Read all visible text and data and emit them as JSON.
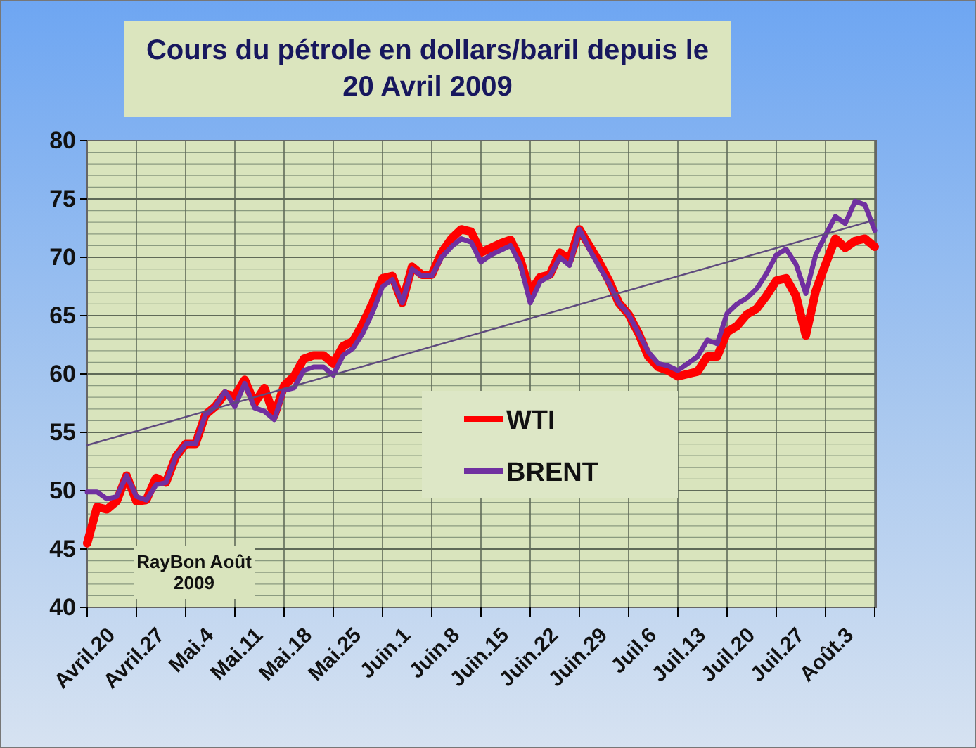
{
  "chart_data": {
    "type": "line",
    "title": "Cours du pétrole en dollars/baril depuis le 20 Avril 2009",
    "categories": [
      "Avril.20",
      null,
      null,
      null,
      null,
      "Avril.27",
      null,
      null,
      null,
      null,
      "Mai.4",
      null,
      null,
      null,
      null,
      "Mai.11",
      null,
      null,
      null,
      null,
      "Mai.18",
      null,
      null,
      null,
      null,
      "Mai.25",
      null,
      null,
      null,
      null,
      "Juin.1",
      null,
      null,
      null,
      null,
      "Juin.8",
      null,
      null,
      null,
      null,
      "Juin.15",
      null,
      null,
      null,
      null,
      "Juin.22",
      null,
      null,
      null,
      null,
      "Juin.29",
      null,
      null,
      null,
      null,
      "Juil.6",
      null,
      null,
      null,
      null,
      "Juil.13",
      null,
      null,
      null,
      null,
      "Juil.20",
      null,
      null,
      null,
      null,
      "Juil.27",
      null,
      null,
      null,
      null,
      "Août.3",
      null,
      null,
      null,
      null,
      null
    ],
    "series": [
      {
        "name": "WTI",
        "color": "#ff0000",
        "values": [
          45.5,
          48.6,
          48.4,
          49.1,
          51.3,
          49.1,
          49.2,
          51.1,
          50.7,
          52.9,
          54.0,
          54.0,
          56.5,
          57.2,
          58.3,
          58.1,
          59.5,
          57.5,
          58.8,
          56.4,
          59.0,
          59.8,
          61.3,
          61.6,
          61.6,
          60.9,
          62.4,
          62.8,
          64.3,
          66.1,
          68.2,
          68.4,
          66.1,
          69.2,
          68.5,
          68.5,
          70.4,
          71.6,
          72.4,
          72.2,
          70.4,
          70.8,
          71.2,
          71.5,
          69.8,
          67.0,
          68.3,
          68.5,
          70.4,
          69.8,
          72.4,
          71.0,
          69.6,
          68.0,
          66.1,
          65.1,
          63.5,
          61.5,
          60.6,
          60.3,
          59.8,
          60.0,
          60.2,
          61.5,
          61.5,
          63.6,
          64.1,
          65.1,
          65.6,
          66.7,
          68.0,
          68.2,
          66.7,
          63.3,
          67.1,
          69.4,
          71.6,
          70.8,
          71.4,
          71.6,
          70.9
        ]
      },
      {
        "name": "BRENT",
        "color": "#7030a0",
        "values": [
          49.9,
          49.9,
          49.3,
          49.5,
          51.3,
          49.5,
          49.2,
          50.5,
          50.7,
          52.9,
          54.0,
          54.0,
          56.5,
          57.2,
          58.5,
          57.2,
          59.2,
          57.1,
          56.8,
          56.1,
          58.6,
          58.8,
          60.3,
          60.6,
          60.6,
          59.9,
          61.6,
          62.2,
          63.5,
          65.3,
          67.5,
          68.1,
          66.1,
          69.0,
          68.4,
          68.4,
          70.0,
          70.9,
          71.6,
          71.3,
          69.6,
          70.2,
          70.6,
          71.0,
          69.4,
          66.1,
          67.9,
          68.4,
          70.0,
          69.3,
          72.4,
          70.7,
          69.2,
          67.8,
          66.1,
          65.1,
          63.5,
          61.9,
          60.9,
          60.7,
          60.3,
          60.9,
          61.5,
          62.9,
          62.6,
          65.2,
          66.0,
          66.5,
          67.3,
          68.6,
          70.2,
          70.7,
          69.4,
          66.9,
          70.2,
          71.9,
          73.5,
          72.9,
          74.8,
          74.5,
          72.3
        ]
      },
      {
        "type": "line",
        "color": "#5e4a7e",
        "values": [
          53.9,
          null,
          null,
          null,
          null,
          null,
          null,
          null,
          null,
          null,
          null,
          null,
          null,
          null,
          null,
          null,
          null,
          null,
          null,
          null,
          null,
          null,
          null,
          null,
          null,
          null,
          null,
          null,
          null,
          null,
          null,
          null,
          null,
          null,
          null,
          null,
          null,
          null,
          null,
          null,
          null,
          null,
          null,
          null,
          null,
          null,
          null,
          null,
          null,
          null,
          null,
          null,
          null,
          null,
          null,
          null,
          null,
          null,
          null,
          null,
          null,
          null,
          null,
          null,
          null,
          null,
          null,
          null,
          null,
          null,
          null,
          null,
          null,
          null,
          null,
          null,
          null,
          null,
          null,
          null,
          73.2
        ]
      }
    ],
    "ylim": [
      40,
      80
    ],
    "yticks": [
      40,
      {
        "value": 41,
        "label": null
      },
      {
        "value": 42,
        "label": null
      },
      {
        "value": 43,
        "label": null
      },
      {
        "value": 44,
        "label": null
      },
      45,
      {
        "value": 46,
        "label": null
      },
      {
        "value": 47,
        "label": null
      },
      {
        "value": 48,
        "label": null
      },
      {
        "value": 49,
        "label": null
      },
      50,
      {
        "value": 51,
        "label": null
      },
      {
        "value": 52,
        "label": null
      },
      {
        "value": 53,
        "label": null
      },
      {
        "value": 54,
        "label": null
      },
      55,
      {
        "value": 56,
        "label": null
      },
      {
        "value": 57,
        "label": null
      },
      {
        "value": 58,
        "label": null
      },
      {
        "value": 59,
        "label": null
      },
      60,
      {
        "value": 61,
        "label": null
      },
      {
        "value": 62,
        "label": null
      },
      {
        "value": 63,
        "label": null
      },
      {
        "value": 64,
        "label": null
      },
      65,
      {
        "value": 66,
        "label": null
      },
      {
        "value": 67,
        "label": null
      },
      {
        "value": 68,
        "label": null
      },
      {
        "value": 69,
        "label": null
      },
      70,
      {
        "value": 71,
        "label": null
      },
      {
        "value": 72,
        "label": null
      },
      {
        "value": 73,
        "label": null
      },
      {
        "value": 74,
        "label": null
      },
      75,
      {
        "value": 76,
        "label": null
      },
      {
        "value": 77,
        "label": null
      },
      {
        "value": 78,
        "label": null
      },
      {
        "value": 79,
        "label": null
      },
      80
    ],
    "grid": true,
    "legend": "bottom",
    "annotations": [
      "RayBon Août 2009"
    ]
  }
}
